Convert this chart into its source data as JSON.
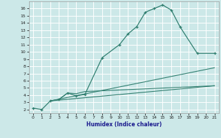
{
  "title": "",
  "xlabel": "Humidex (Indice chaleur)",
  "bg_color": "#cce8e8",
  "grid_color": "#ffffff",
  "line_color": "#2e7d6e",
  "xlim": [
    -0.5,
    21.5
  ],
  "ylim": [
    1.5,
    17.0
  ],
  "xticks": [
    0,
    1,
    2,
    3,
    4,
    5,
    6,
    7,
    8,
    9,
    10,
    11,
    12,
    13,
    14,
    15,
    16,
    17,
    18,
    19,
    20,
    21
  ],
  "yticks": [
    2,
    3,
    4,
    5,
    6,
    7,
    8,
    9,
    10,
    11,
    12,
    13,
    14,
    15,
    16
  ],
  "curve1_x": [
    0,
    1,
    2,
    3,
    4,
    5,
    6,
    8,
    10,
    11,
    12,
    13,
    14,
    15,
    16,
    17,
    19,
    21
  ],
  "curve1_y": [
    2.2,
    2.0,
    3.2,
    3.4,
    4.3,
    3.9,
    4.1,
    9.2,
    11.0,
    12.5,
    13.5,
    15.5,
    16.0,
    16.5,
    15.8,
    13.5,
    9.8,
    9.8
  ],
  "curve2_x": [
    2,
    3,
    4,
    5,
    6,
    21
  ],
  "curve2_y": [
    3.2,
    3.4,
    4.3,
    4.2,
    4.5,
    5.3
  ],
  "curve3_x": [
    2,
    21
  ],
  "curve3_y": [
    3.2,
    7.8
  ],
  "curve4_x": [
    2,
    21
  ],
  "curve4_y": [
    3.2,
    5.3
  ]
}
